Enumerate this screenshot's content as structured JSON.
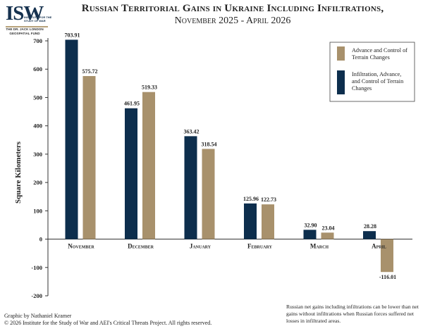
{
  "logo": {
    "text": "ISW",
    "subtext": "INSTITUTE FOR THE STUDY OF WAR",
    "fund": "THE DR. JACK LONDON GEOSPATIAL FUND"
  },
  "title": "Russian Territorial Gains in Ukraine Including Infiltrations,",
  "subtitle": "November 2025 - April 2026",
  "credit_line1": "Graphic by Nathaniel Kramer",
  "credit_line2": "© 2026 Institute for the Study of War and AEI's Critical Threats Project. All rights reserved.",
  "note": "Russian net gains including infiltrations can be lower than net gains without infiltrations when Russian forces suffered net losses in infiltrated areas.",
  "colors": {
    "navy": "#0d2e4d",
    "tan": "#a8916c",
    "axis": "#333333"
  },
  "chart_data": {
    "type": "bar",
    "categories": [
      "November",
      "December",
      "January",
      "February",
      "March",
      "April"
    ],
    "series": [
      {
        "name": "Infiltration, Advance, and Control of Terrain Changes",
        "color": "#0d2e4d",
        "values": [
          703.91,
          461.95,
          363.42,
          125.96,
          32.9,
          28.28
        ]
      },
      {
        "name": "Advance and Control of Terrain Changes",
        "color": "#a8916c",
        "values": [
          575.72,
          519.33,
          318.54,
          122.73,
          23.04,
          -116.01
        ]
      }
    ],
    "value_labels": [
      [
        "703.91",
        "461.95",
        "363.42",
        "125.96",
        "32.90",
        "28.28"
      ],
      [
        "575.72",
        "519.33",
        "318.54",
        "122.73",
        "23.04",
        "-116.01"
      ]
    ],
    "ylabel": "Square Kilometers",
    "xlabel": "",
    "ylim": [
      -200,
      700
    ],
    "yticks": [
      -200,
      -100,
      0,
      100,
      200,
      300,
      400,
      500,
      600,
      700
    ],
    "grid": false,
    "legend": {
      "position": "top-right",
      "entries": [
        {
          "label": "Advance and Control of Terrain Changes",
          "color": "#a8916c"
        },
        {
          "label": "Infiltration, Advance, and Control of Terrain Changes",
          "color": "#0d2e4d"
        }
      ]
    }
  }
}
